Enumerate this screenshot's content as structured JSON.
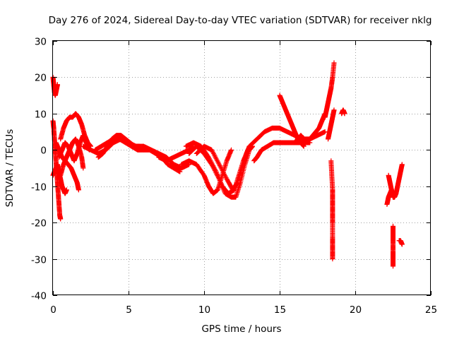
{
  "chart_data": {
    "type": "scatter",
    "title": "Day 276 of 2024, Sidereal Day-to-day VTEC variation (SDTVAR) for receiver nklg",
    "xlabel": "GPS time / hours",
    "ylabel": "SDTVAR / TECUs",
    "xlim": [
      0,
      25
    ],
    "ylim": [
      -40,
      30
    ],
    "xticks": [
      0,
      5,
      10,
      15,
      20,
      25
    ],
    "yticks": [
      -40,
      -30,
      -20,
      -10,
      0,
      10,
      20,
      30
    ],
    "xtick_labels": [
      "0",
      "5",
      "10",
      "15",
      "20",
      "25"
    ],
    "ytick_labels": [
      "-40",
      "-30",
      "-20",
      "-10",
      "0",
      "10",
      "20",
      "30"
    ],
    "grid": true,
    "marker": "+",
    "color": "#ff0000",
    "tracks": [
      [
        [
          0.0,
          20
        ],
        [
          0.05,
          18
        ],
        [
          0.1,
          16
        ],
        [
          0.15,
          15
        ],
        [
          0.2,
          16
        ],
        [
          0.25,
          17
        ],
        [
          0.3,
          18
        ]
      ],
      [
        [
          0.0,
          8
        ],
        [
          0.05,
          6
        ],
        [
          0.1,
          3
        ],
        [
          0.15,
          0
        ],
        [
          0.2,
          -3
        ],
        [
          0.25,
          -6
        ],
        [
          0.3,
          -9
        ],
        [
          0.35,
          -12
        ],
        [
          0.4,
          -15
        ],
        [
          0.45,
          -18
        ],
        [
          0.5,
          -19
        ]
      ],
      [
        [
          0.0,
          -7
        ],
        [
          0.1,
          -6
        ],
        [
          0.2,
          -5
        ],
        [
          0.3,
          -4
        ],
        [
          0.4,
          -6
        ],
        [
          0.5,
          -8
        ],
        [
          0.6,
          -10
        ],
        [
          0.7,
          -11
        ],
        [
          0.8,
          -12
        ],
        [
          0.9,
          -11
        ]
      ],
      [
        [
          0.2,
          2
        ],
        [
          0.4,
          0
        ],
        [
          0.6,
          -2
        ],
        [
          0.8,
          -3
        ],
        [
          1.0,
          -4
        ],
        [
          1.2,
          -5
        ],
        [
          1.4,
          -7
        ],
        [
          1.6,
          -9
        ],
        [
          1.7,
          -11
        ]
      ],
      [
        [
          0.5,
          3
        ],
        [
          0.7,
          6
        ],
        [
          0.9,
          8
        ],
        [
          1.1,
          9
        ],
        [
          1.3,
          9
        ],
        [
          1.5,
          10
        ],
        [
          1.7,
          9
        ],
        [
          1.9,
          7
        ],
        [
          2.1,
          4
        ],
        [
          2.3,
          2
        ],
        [
          2.5,
          1
        ]
      ],
      [
        [
          0.4,
          -2
        ],
        [
          0.6,
          0
        ],
        [
          0.8,
          2
        ],
        [
          1.0,
          1
        ],
        [
          1.2,
          -1
        ],
        [
          1.4,
          -3
        ],
        [
          1.6,
          -1
        ],
        [
          1.8,
          2
        ],
        [
          2.0,
          4
        ],
        [
          2.2,
          2
        ],
        [
          2.4,
          0
        ]
      ],
      [
        [
          0.5,
          -7
        ],
        [
          0.7,
          -4
        ],
        [
          0.9,
          -2
        ],
        [
          1.1,
          0
        ],
        [
          1.3,
          2
        ],
        [
          1.5,
          3
        ],
        [
          1.7,
          1
        ],
        [
          1.9,
          -2
        ],
        [
          2.0,
          -5
        ]
      ],
      [
        [
          2.0,
          1
        ],
        [
          2.5,
          0
        ],
        [
          3.0,
          -1
        ],
        [
          3.5,
          0
        ],
        [
          4.0,
          2
        ],
        [
          4.5,
          3
        ],
        [
          5.0,
          2
        ],
        [
          5.5,
          1
        ],
        [
          6.0,
          1
        ],
        [
          6.5,
          0
        ],
        [
          7.0,
          -1
        ],
        [
          7.5,
          -2
        ],
        [
          8.0,
          -4
        ],
        [
          8.5,
          -5
        ],
        [
          9.0,
          -4
        ]
      ],
      [
        [
          3.0,
          -2
        ],
        [
          3.3,
          -1
        ],
        [
          3.6,
          1
        ],
        [
          3.9,
          3
        ],
        [
          4.2,
          4
        ],
        [
          4.5,
          4
        ],
        [
          4.8,
          3
        ],
        [
          5.1,
          2
        ],
        [
          5.4,
          1
        ],
        [
          5.7,
          1
        ]
      ],
      [
        [
          2.8,
          0
        ],
        [
          3.2,
          1
        ],
        [
          3.6,
          2
        ],
        [
          4.0,
          3
        ],
        [
          4.4,
          3
        ],
        [
          4.8,
          2
        ],
        [
          5.2,
          1
        ],
        [
          5.6,
          0
        ],
        [
          6.0,
          0
        ],
        [
          6.4,
          0
        ],
        [
          6.8,
          -1
        ],
        [
          7.2,
          -2
        ],
        [
          7.6,
          -4
        ],
        [
          8.0,
          -5
        ],
        [
          8.4,
          -6
        ]
      ],
      [
        [
          8.5,
          -4
        ],
        [
          9.0,
          -3
        ],
        [
          9.5,
          -4
        ],
        [
          10.0,
          -7
        ],
        [
          10.3,
          -10
        ],
        [
          10.6,
          -12
        ],
        [
          10.9,
          -11
        ],
        [
          11.2,
          -7
        ],
        [
          11.5,
          -3
        ],
        [
          11.8,
          0
        ]
      ],
      [
        [
          9.0,
          -1
        ],
        [
          9.5,
          1
        ],
        [
          10.0,
          -1
        ],
        [
          10.5,
          -4
        ],
        [
          11.0,
          -8
        ],
        [
          11.4,
          -12
        ],
        [
          11.8,
          -13
        ],
        [
          12.1,
          -13
        ],
        [
          12.4,
          -9
        ],
        [
          12.7,
          -4
        ],
        [
          13.0,
          0
        ],
        [
          13.2,
          1
        ]
      ],
      [
        [
          8.8,
          1
        ],
        [
          9.3,
          2
        ],
        [
          9.8,
          1
        ],
        [
          10.3,
          -2
        ],
        [
          10.8,
          -6
        ],
        [
          11.2,
          -10
        ],
        [
          11.6,
          -12
        ],
        [
          12.0,
          -11
        ],
        [
          12.3,
          -7
        ],
        [
          12.6,
          -3
        ],
        [
          12.9,
          0
        ]
      ],
      [
        [
          9.5,
          -1
        ],
        [
          10.0,
          1
        ],
        [
          10.5,
          0
        ],
        [
          11.0,
          -4
        ],
        [
          11.5,
          -8
        ],
        [
          11.9,
          -11
        ],
        [
          12.2,
          -9
        ],
        [
          12.5,
          -5
        ],
        [
          12.8,
          -1
        ],
        [
          13.0,
          1
        ]
      ],
      [
        [
          7.0,
          -2
        ],
        [
          7.5,
          -3
        ],
        [
          8.0,
          -2
        ],
        [
          8.5,
          -1
        ],
        [
          9.0,
          0
        ],
        [
          9.3,
          1
        ]
      ],
      [
        [
          13.0,
          1
        ],
        [
          13.5,
          3
        ],
        [
          14.0,
          5
        ],
        [
          14.5,
          6
        ],
        [
          15.0,
          6
        ],
        [
          15.5,
          5
        ],
        [
          16.0,
          4
        ],
        [
          16.5,
          3
        ],
        [
          17.0,
          3
        ],
        [
          17.5,
          4
        ],
        [
          18.0,
          5
        ]
      ],
      [
        [
          13.3,
          -3
        ],
        [
          13.5,
          -2
        ],
        [
          13.8,
          0
        ],
        [
          14.2,
          1
        ],
        [
          14.6,
          2
        ],
        [
          15.0,
          2
        ],
        [
          15.5,
          2
        ],
        [
          16.0,
          2
        ],
        [
          16.5,
          2
        ],
        [
          17.0,
          2
        ]
      ],
      [
        [
          15.0,
          15
        ],
        [
          15.2,
          13
        ],
        [
          15.4,
          11
        ],
        [
          15.6,
          9
        ],
        [
          15.8,
          7
        ],
        [
          16.0,
          5
        ],
        [
          16.2,
          3
        ],
        [
          16.4,
          2
        ],
        [
          16.6,
          1
        ]
      ],
      [
        [
          16.0,
          2
        ],
        [
          16.2,
          3
        ],
        [
          16.4,
          4
        ],
        [
          16.6,
          3
        ],
        [
          16.8,
          2
        ],
        [
          17.0,
          3
        ],
        [
          17.2,
          4
        ],
        [
          17.4,
          5
        ],
        [
          17.6,
          6
        ],
        [
          17.8,
          8
        ],
        [
          18.0,
          10
        ]
      ],
      [
        [
          18.0,
          9
        ],
        [
          18.1,
          11
        ],
        [
          18.2,
          13
        ],
        [
          18.3,
          15
        ],
        [
          18.4,
          17
        ],
        [
          18.5,
          20
        ],
        [
          18.6,
          24
        ]
      ],
      [
        [
          18.2,
          3
        ],
        [
          18.3,
          5
        ],
        [
          18.4,
          7
        ],
        [
          18.5,
          9
        ],
        [
          18.6,
          11
        ]
      ],
      [
        [
          18.4,
          -3
        ],
        [
          18.45,
          -7
        ],
        [
          18.5,
          -11
        ],
        [
          18.5,
          -14
        ],
        [
          18.5,
          -17
        ],
        [
          18.5,
          -20
        ],
        [
          18.5,
          -24
        ],
        [
          18.5,
          -27
        ],
        [
          18.5,
          -30
        ]
      ],
      [
        [
          19.1,
          10
        ],
        [
          19.2,
          11
        ],
        [
          19.3,
          10
        ]
      ],
      [
        [
          22.2,
          -7
        ],
        [
          22.3,
          -9
        ],
        [
          22.4,
          -11
        ],
        [
          22.5,
          -13
        ],
        [
          22.6,
          -13
        ],
        [
          22.7,
          -12
        ],
        [
          22.8,
          -10
        ],
        [
          22.9,
          -8
        ],
        [
          23.0,
          -6
        ],
        [
          23.1,
          -4
        ]
      ],
      [
        [
          22.1,
          -15
        ],
        [
          22.2,
          -13
        ],
        [
          22.3,
          -12
        ],
        [
          22.4,
          -11
        ]
      ],
      [
        [
          22.5,
          -21
        ],
        [
          22.5,
          -23
        ],
        [
          22.5,
          -25
        ],
        [
          22.5,
          -28
        ],
        [
          22.5,
          -30
        ],
        [
          22.5,
          -32
        ]
      ],
      [
        [
          22.9,
          -25
        ],
        [
          23.0,
          -25
        ],
        [
          23.1,
          -26
        ]
      ]
    ]
  }
}
